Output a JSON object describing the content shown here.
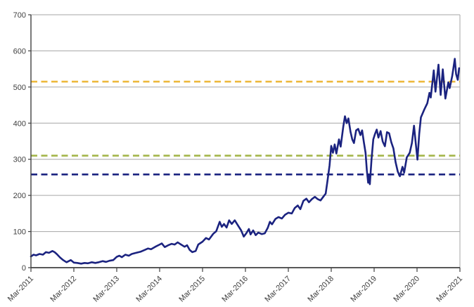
{
  "chart_data": {
    "type": "line",
    "title": "",
    "legend": "none",
    "grid": "horizontal-only",
    "x_axis": {
      "labels": [
        "Mar-2011",
        "Mar-2012",
        "Mar-2013",
        "Mar-2014",
        "Mar-2015",
        "Mar-2016",
        "Mar-2017",
        "Mar-2018",
        "Mar-2019",
        "Mar-2020",
        "Mar-2021"
      ],
      "label_rotation_deg": -45
    },
    "y_axis": {
      "min": 0,
      "max": 700,
      "step": 100,
      "tick_labels": [
        "0",
        "100",
        "200",
        "300",
        "400",
        "500",
        "600",
        "700"
      ]
    },
    "reference_lines": [
      {
        "name": "upper-dashed-line",
        "value": 515,
        "color": "#EDB93D",
        "style": "dashed"
      },
      {
        "name": "middle-dashed-line",
        "value": 310,
        "color": "#A4B54A",
        "style": "dashed"
      },
      {
        "name": "lower-dashed-line",
        "value": 258,
        "color": "#1B2380",
        "style": "dashed"
      }
    ],
    "series": [
      {
        "name": "main-series",
        "color": "#1B2380",
        "points": [
          [
            0,
            31
          ],
          [
            0.06,
            36
          ],
          [
            0.12,
            34
          ],
          [
            0.2,
            38
          ],
          [
            0.28,
            36
          ],
          [
            0.35,
            43
          ],
          [
            0.42,
            41
          ],
          [
            0.5,
            46
          ],
          [
            0.55,
            43
          ],
          [
            0.6,
            38
          ],
          [
            0.68,
            28
          ],
          [
            0.75,
            21
          ],
          [
            0.83,
            15
          ],
          [
            0.93,
            21
          ],
          [
            1,
            14
          ],
          [
            1.08,
            13
          ],
          [
            1.17,
            11
          ],
          [
            1.25,
            13
          ],
          [
            1.33,
            12
          ],
          [
            1.42,
            15
          ],
          [
            1.5,
            13
          ],
          [
            1.58,
            15
          ],
          [
            1.67,
            18
          ],
          [
            1.75,
            16
          ],
          [
            1.83,
            19
          ],
          [
            1.92,
            21
          ],
          [
            2,
            30
          ],
          [
            2.06,
            33
          ],
          [
            2.12,
            29
          ],
          [
            2.2,
            36
          ],
          [
            2.28,
            33
          ],
          [
            2.35,
            38
          ],
          [
            2.45,
            41
          ],
          [
            2.55,
            44
          ],
          [
            2.65,
            49
          ],
          [
            2.73,
            53
          ],
          [
            2.8,
            51
          ],
          [
            2.9,
            58
          ],
          [
            3,
            64
          ],
          [
            3.05,
            67
          ],
          [
            3.12,
            57
          ],
          [
            3.2,
            62
          ],
          [
            3.28,
            66
          ],
          [
            3.35,
            64
          ],
          [
            3.42,
            70
          ],
          [
            3.5,
            64
          ],
          [
            3.58,
            58
          ],
          [
            3.64,
            62
          ],
          [
            3.7,
            49
          ],
          [
            3.76,
            43
          ],
          [
            3.84,
            46
          ],
          [
            3.9,
            64
          ],
          [
            3.95,
            68
          ],
          [
            4,
            72
          ],
          [
            4.08,
            82
          ],
          [
            4.15,
            78
          ],
          [
            4.25,
            94
          ],
          [
            4.32,
            101
          ],
          [
            4.4,
            127
          ],
          [
            4.45,
            113
          ],
          [
            4.5,
            121
          ],
          [
            4.56,
            111
          ],
          [
            4.62,
            131
          ],
          [
            4.68,
            121
          ],
          [
            4.75,
            131
          ],
          [
            4.82,
            118
          ],
          [
            4.9,
            103
          ],
          [
            4.96,
            86
          ],
          [
            5.02,
            95
          ],
          [
            5.08,
            107
          ],
          [
            5.12,
            92
          ],
          [
            5.18,
            103
          ],
          [
            5.24,
            90
          ],
          [
            5.3,
            97
          ],
          [
            5.38,
            93
          ],
          [
            5.45,
            95
          ],
          [
            5.52,
            110
          ],
          [
            5.57,
            127
          ],
          [
            5.62,
            120
          ],
          [
            5.7,
            135
          ],
          [
            5.77,
            140
          ],
          [
            5.85,
            136
          ],
          [
            5.92,
            146
          ],
          [
            6,
            152
          ],
          [
            6.08,
            150
          ],
          [
            6.15,
            165
          ],
          [
            6.22,
            172
          ],
          [
            6.28,
            162
          ],
          [
            6.35,
            185
          ],
          [
            6.42,
            191
          ],
          [
            6.48,
            181
          ],
          [
            6.55,
            190
          ],
          [
            6.62,
            196
          ],
          [
            6.68,
            190
          ],
          [
            6.75,
            186
          ],
          [
            6.82,
            197
          ],
          [
            6.87,
            205
          ],
          [
            6.91,
            238
          ],
          [
            6.96,
            283
          ],
          [
            7,
            337
          ],
          [
            7.04,
            318
          ],
          [
            7.08,
            341
          ],
          [
            7.12,
            316
          ],
          [
            7.18,
            355
          ],
          [
            7.22,
            335
          ],
          [
            7.28,
            390
          ],
          [
            7.32,
            419
          ],
          [
            7.36,
            400
          ],
          [
            7.4,
            413
          ],
          [
            7.45,
            376
          ],
          [
            7.49,
            355
          ],
          [
            7.53,
            345
          ],
          [
            7.58,
            380
          ],
          [
            7.63,
            384
          ],
          [
            7.68,
            367
          ],
          [
            7.72,
            380
          ],
          [
            7.76,
            347
          ],
          [
            7.8,
            318
          ],
          [
            7.83,
            270
          ],
          [
            7.86,
            235
          ],
          [
            7.88,
            255
          ],
          [
            7.9,
            231
          ],
          [
            7.94,
            300
          ],
          [
            7.98,
            355
          ],
          [
            8.02,
            370
          ],
          [
            8.06,
            382
          ],
          [
            8.1,
            360
          ],
          [
            8.15,
            378
          ],
          [
            8.2,
            349
          ],
          [
            8.25,
            336
          ],
          [
            8.3,
            375
          ],
          [
            8.35,
            372
          ],
          [
            8.4,
            347
          ],
          [
            8.45,
            330
          ],
          [
            8.5,
            292
          ],
          [
            8.55,
            266
          ],
          [
            8.6,
            253
          ],
          [
            8.66,
            279
          ],
          [
            8.7,
            263
          ],
          [
            8.76,
            305
          ],
          [
            8.83,
            318
          ],
          [
            8.88,
            345
          ],
          [
            8.93,
            393
          ],
          [
            8.97,
            344
          ],
          [
            9.01,
            299
          ],
          [
            9.05,
            370
          ],
          [
            9.09,
            416
          ],
          [
            9.17,
            438
          ],
          [
            9.24,
            455
          ],
          [
            9.29,
            484
          ],
          [
            9.32,
            471
          ],
          [
            9.39,
            546
          ],
          [
            9.43,
            487
          ],
          [
            9.5,
            562
          ],
          [
            9.55,
            478
          ],
          [
            9.6,
            549
          ],
          [
            9.66,
            468
          ],
          [
            9.73,
            513
          ],
          [
            9.76,
            497
          ],
          [
            9.82,
            530
          ],
          [
            9.88,
            578
          ],
          [
            9.91,
            536
          ],
          [
            9.95,
            520
          ],
          [
            9.98,
            552
          ]
        ]
      }
    ],
    "colors": {
      "gridline": "#A6A6A6",
      "axis": "#404040",
      "tick_label": "#404040",
      "plot_right_border": "#A6A6A6"
    }
  }
}
